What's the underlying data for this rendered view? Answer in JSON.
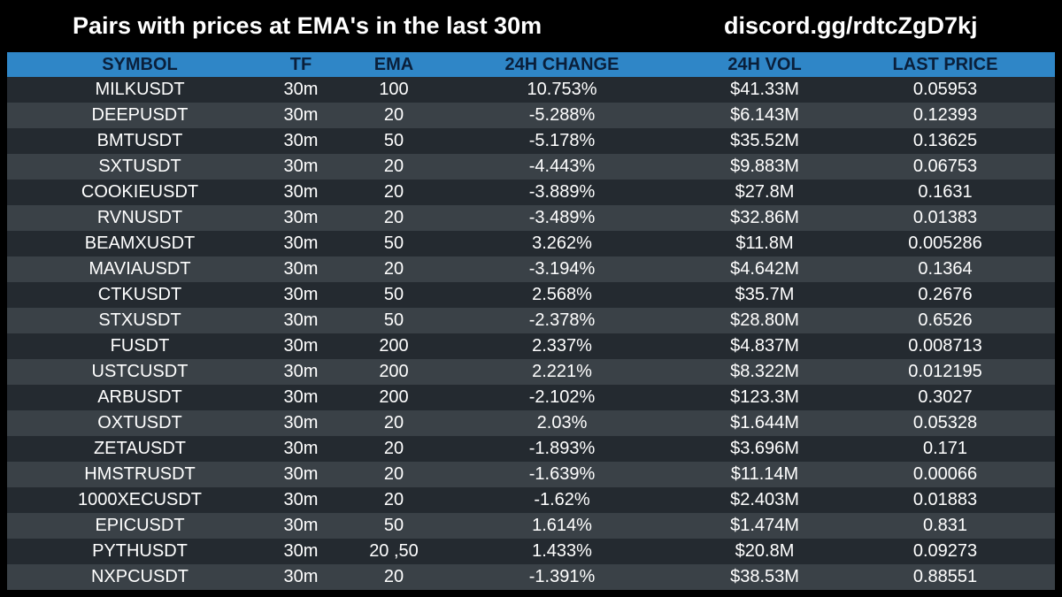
{
  "header": {
    "title": "Pairs with prices at EMA's in the last 30m",
    "link": "discord.gg/rdtcZgD7kj"
  },
  "table": {
    "columns": [
      "SYMBOL",
      "TF",
      "EMA",
      "24H CHANGE",
      "24H VOL",
      "LAST PRICE"
    ],
    "rows": [
      [
        "MILKUSDT",
        "30m",
        "100",
        "10.753%",
        "$41.33M",
        "0.05953"
      ],
      [
        "DEEPUSDT",
        "30m",
        "20",
        "-5.288%",
        "$6.143M",
        "0.12393"
      ],
      [
        "BMTUSDT",
        "30m",
        "50",
        "-5.178%",
        "$35.52M",
        "0.13625"
      ],
      [
        "SXTUSDT",
        "30m",
        "20",
        "-4.443%",
        "$9.883M",
        "0.06753"
      ],
      [
        "COOKIEUSDT",
        "30m",
        "20",
        "-3.889%",
        "$27.8M",
        "0.1631"
      ],
      [
        "RVNUSDT",
        "30m",
        "20",
        "-3.489%",
        "$32.86M",
        "0.01383"
      ],
      [
        "BEAMXUSDT",
        "30m",
        "50",
        "3.262%",
        "$11.8M",
        "0.005286"
      ],
      [
        "MAVIAUSDT",
        "30m",
        "20",
        "-3.194%",
        "$4.642M",
        "0.1364"
      ],
      [
        "CTKUSDT",
        "30m",
        "50",
        "2.568%",
        "$35.7M",
        "0.2676"
      ],
      [
        "STXUSDT",
        "30m",
        "50",
        "-2.378%",
        "$28.80M",
        "0.6526"
      ],
      [
        "FUSDT",
        "30m",
        "200",
        "2.337%",
        "$4.837M",
        "0.008713"
      ],
      [
        "USTCUSDT",
        "30m",
        "200",
        "2.221%",
        "$8.322M",
        "0.012195"
      ],
      [
        "ARBUSDT",
        "30m",
        "200",
        "-2.102%",
        "$123.3M",
        "0.3027"
      ],
      [
        "OXTUSDT",
        "30m",
        "20",
        "2.03%",
        "$1.644M",
        "0.05328"
      ],
      [
        "ZETAUSDT",
        "30m",
        "20",
        "-1.893%",
        "$3.696M",
        "0.171"
      ],
      [
        "HMSTRUSDT",
        "30m",
        "20",
        "-1.639%",
        "$11.14M",
        "0.00066"
      ],
      [
        "1000XECUSDT",
        "30m",
        "20",
        "-1.62%",
        "$2.403M",
        "0.01883"
      ],
      [
        "EPICUSDT",
        "30m",
        "50",
        "1.614%",
        "$1.474M",
        "0.831"
      ],
      [
        "PYTHUSDT",
        "30m",
        "20 ,50",
        "1.433%",
        "$20.8M",
        "0.09273"
      ],
      [
        "NXPCUSDT",
        "30m",
        "20",
        "-1.391%",
        "$38.53M",
        "0.88551"
      ]
    ]
  },
  "colors": {
    "background": "#000000",
    "header_row": "#2f86c7",
    "header_text": "#0a1f3a",
    "row_dark": "#242a30",
    "row_light": "#3a4147",
    "text": "#ffffff"
  }
}
